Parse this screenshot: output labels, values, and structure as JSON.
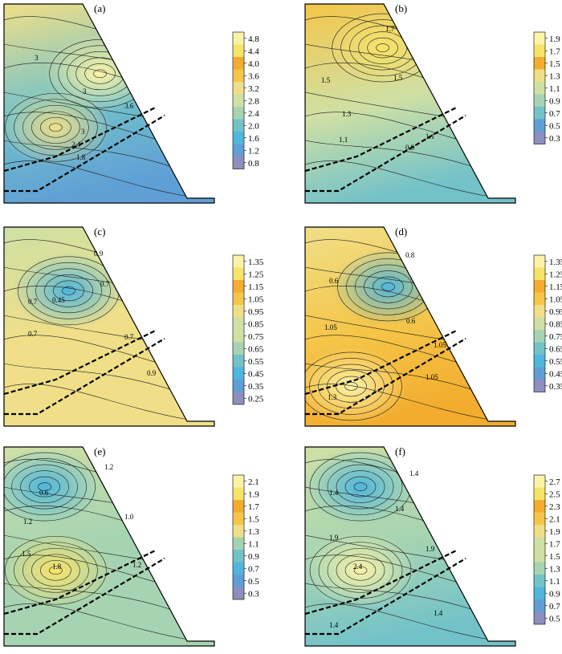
{
  "chart_data": [
    {
      "type": "contour",
      "panel_label": "(a)",
      "colorbar_ticks": [
        "4.8",
        "4.4",
        "4.0",
        "3.6",
        "3.2",
        "2.8",
        "2.4",
        "2.0",
        "1.6",
        "1.2",
        "0.8"
      ],
      "contour_labels": [
        "3",
        "3",
        "3",
        "3.6",
        "2.4",
        "1.8"
      ],
      "range": [
        0.8,
        4.8
      ],
      "hot_spots": [
        [
          0.52,
          0.35,
          5.0
        ],
        [
          0.28,
          0.62,
          3.4
        ]
      ],
      "base": 3.0,
      "lower_value": 1.2
    },
    {
      "type": "contour",
      "panel_label": "(b)",
      "colorbar_ticks": [
        "1.9",
        "1.7",
        "1.5",
        "1.3",
        "1.1",
        "0.9",
        "0.7",
        "0.5",
        "0.3"
      ],
      "contour_labels": [
        "1.7",
        "1.5",
        "1.5",
        "1.3",
        "1.1",
        "0.9",
        "1.1"
      ],
      "range": [
        0.3,
        1.9
      ],
      "hot_spots": [
        [
          0.42,
          0.22,
          1.8
        ]
      ],
      "base": 1.45,
      "lower_value": 0.75
    },
    {
      "type": "contour",
      "panel_label": "(c)",
      "colorbar_ticks": [
        "1.35",
        "1.25",
        "1.15",
        "1.05",
        "0.95",
        "0.85",
        "0.75",
        "0.65",
        "0.55",
        "0.45",
        "0.35",
        "0.25"
      ],
      "contour_labels": [
        "0.9",
        "0.7",
        "0.45",
        "0.7",
        "0.7",
        "0.7",
        "0.9"
      ],
      "range": [
        0.25,
        1.35
      ],
      "hot_spots": [
        [
          0.35,
          0.32,
          0.45
        ]
      ],
      "base": 0.85,
      "lower_value": 0.9
    },
    {
      "type": "contour",
      "panel_label": "(d)",
      "colorbar_ticks": [
        "1.35",
        "1.25",
        "1.15",
        "1.05",
        "0.95",
        "0.85",
        "0.75",
        "0.65",
        "0.55",
        "0.45",
        "0.35"
      ],
      "contour_labels": [
        "0.8",
        "0.6",
        "0.6",
        "1.05",
        "1.05",
        "1.3",
        "1.05"
      ],
      "range": [
        0.35,
        1.35
      ],
      "hot_spots": [
        [
          0.45,
          0.3,
          0.5
        ],
        [
          0.25,
          0.8,
          1.3
        ]
      ],
      "base": 0.95,
      "lower_value": 1.15
    },
    {
      "type": "contour",
      "panel_label": "(e)",
      "colorbar_ticks": [
        "2.1",
        "1.9",
        "1.7",
        "1.5",
        "1.3",
        "1.1",
        "0.9",
        "0.7",
        "0.5",
        "0.3"
      ],
      "contour_labels": [
        "1.2",
        "0.6",
        "1.0",
        "1.2",
        "1.5",
        "1.8",
        "1.2"
      ],
      "range": [
        0.3,
        2.1
      ],
      "hot_spots": [
        [
          0.22,
          0.2,
          0.6
        ],
        [
          0.28,
          0.62,
          2.0
        ]
      ],
      "base": 1.2,
      "lower_value": 1.0
    },
    {
      "type": "contour",
      "panel_label": "(f)",
      "colorbar_ticks": [
        "2.7",
        "2.5",
        "2.3",
        "2.1",
        "1.9",
        "1.7",
        "1.5",
        "1.3",
        "1.1",
        "0.9",
        "0.7",
        "0.5"
      ],
      "contour_labels": [
        "1.4",
        "1.4",
        "1.4",
        "1.9",
        "2.4",
        "1.9",
        "1.4",
        "1.4"
      ],
      "range": [
        0.5,
        2.7
      ],
      "hot_spots": [
        [
          0.3,
          0.2,
          0.9
        ],
        [
          0.3,
          0.62,
          2.6
        ]
      ],
      "base": 1.5,
      "lower_value": 1.2
    }
  ],
  "colors": {
    "colormap": [
      "#8d8fbf",
      "#5f9fd6",
      "#4fb6dc",
      "#73c2c9",
      "#a6d4b2",
      "#cfe0a4",
      "#f0df88",
      "#f5c64a",
      "#f2ad2f",
      "#f7e36a",
      "#fbf3a8"
    ],
    "dashed_line": "#000000",
    "outline": "#000000"
  }
}
